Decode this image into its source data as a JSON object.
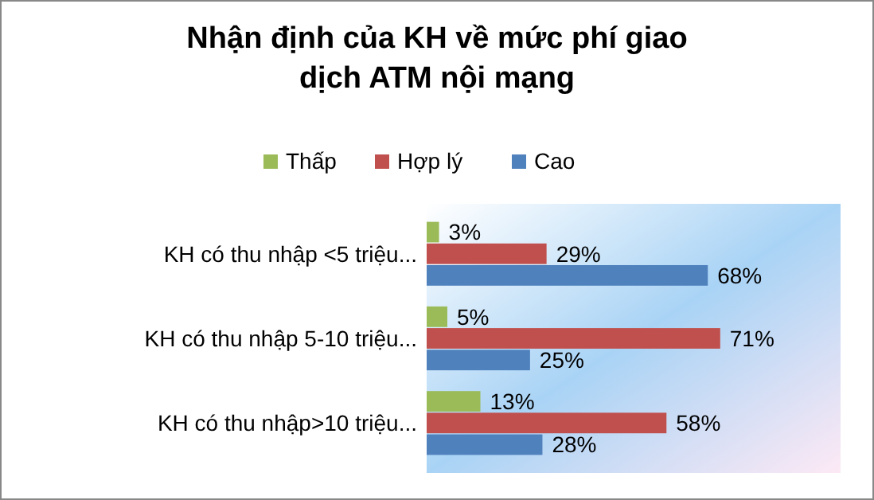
{
  "chart_data": {
    "type": "bar",
    "orientation": "horizontal",
    "title": "Nhận định của KH về mức phí giao dịch ATM nội mạng",
    "categories": [
      "KH có thu nhập <5 triệu...",
      "KH có thu nhập 5-10 triệu...",
      "KH có thu nhập>10 triệu..."
    ],
    "series": [
      {
        "name": "Thấp",
        "color": "#9bbb59",
        "values": [
          3,
          5,
          13
        ],
        "value_labels": [
          "3%",
          "5%",
          "13%"
        ]
      },
      {
        "name": "Hợp lý",
        "color": "#c0504d",
        "values": [
          29,
          71,
          58
        ],
        "value_labels": [
          "29%",
          "71%",
          "58%"
        ]
      },
      {
        "name": "Cao",
        "color": "#4f81bd",
        "values": [
          68,
          25,
          28
        ],
        "value_labels": [
          "68%",
          "25%",
          "28%"
        ]
      }
    ],
    "legend": "top"
  }
}
